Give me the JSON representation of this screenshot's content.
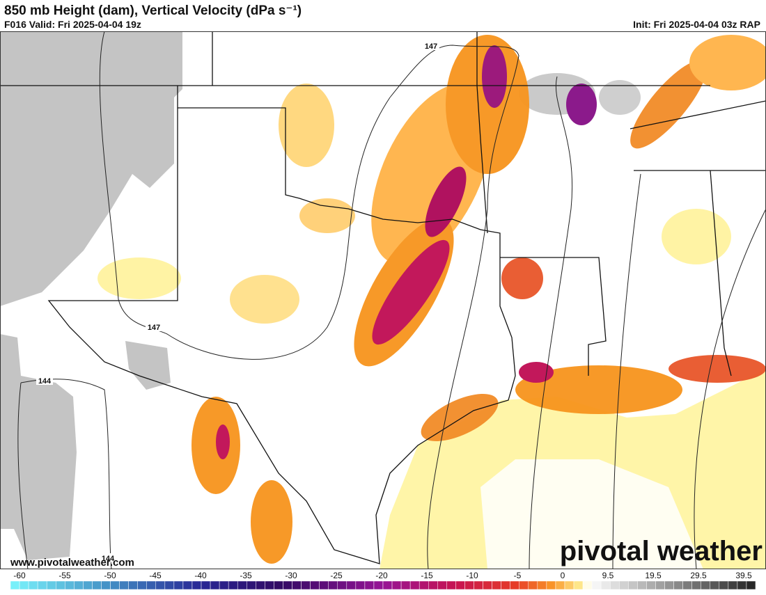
{
  "header": {
    "title": "850 mb Height (dam), Vertical Velocity (dPa s⁻¹)",
    "valid": "F016 Valid: Fri 2025-04-04 19z",
    "init": "Init: Fri 2025-04-04 03z RAP"
  },
  "map": {
    "contour_labels": [
      "147",
      "147",
      "144",
      "144"
    ]
  },
  "watermark": "www.pivotalweather.com",
  "logo": "pivotal weather",
  "colorbar": {
    "ticks": [
      -60,
      -55,
      -50,
      -45,
      -40,
      -35,
      -30,
      -25,
      -20,
      -15,
      -10,
      -5,
      0,
      9.5,
      19.5,
      29.5,
      39.5
    ]
  }
}
